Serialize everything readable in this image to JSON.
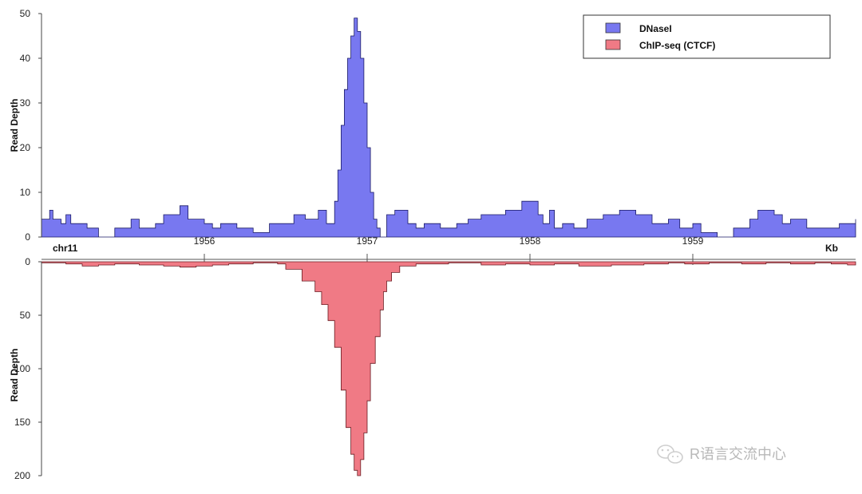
{
  "chart_data": [
    {
      "type": "area",
      "ylabel": "Read Depth",
      "xlabel": "Kb",
      "ylim": [
        0,
        50
      ],
      "xlim": [
        1955.0,
        1960.0
      ],
      "yticks": [
        "0",
        "10",
        "20",
        "30",
        "40",
        "50"
      ],
      "xticks": [
        "1956",
        "1957",
        "1958",
        "1959"
      ],
      "chromosome_label": "chr11",
      "series": [
        {
          "name": "DNaseI",
          "color": "#7878f0",
          "stroke": "#1a1a66",
          "x": [
            1955.0,
            1955.05,
            1955.07,
            1955.12,
            1955.15,
            1955.18,
            1955.22,
            1955.28,
            1955.35,
            1955.45,
            1955.55,
            1955.6,
            1955.7,
            1955.75,
            1955.85,
            1955.9,
            1956.0,
            1956.05,
            1956.1,
            1956.2,
            1956.3,
            1956.4,
            1956.55,
            1956.62,
            1956.7,
            1956.75,
            1956.8,
            1956.82,
            1956.84,
            1956.86,
            1956.88,
            1956.9,
            1956.92,
            1956.94,
            1956.96,
            1956.98,
            1957.0,
            1957.02,
            1957.04,
            1957.06,
            1957.08,
            1957.12,
            1957.17,
            1957.25,
            1957.3,
            1957.35,
            1957.45,
            1957.55,
            1957.62,
            1957.7,
            1957.85,
            1957.95,
            1958.05,
            1958.08,
            1958.12,
            1958.15,
            1958.2,
            1958.27,
            1958.35,
            1958.45,
            1958.55,
            1958.65,
            1958.75,
            1958.85,
            1958.92,
            1959.0,
            1959.05,
            1959.15,
            1959.25,
            1959.35,
            1959.4,
            1959.5,
            1959.55,
            1959.6,
            1959.7,
            1959.8,
            1959.9,
            1960.0
          ],
          "y": [
            4,
            6,
            4,
            3,
            5,
            3,
            3,
            2,
            0,
            2,
            4,
            2,
            3,
            5,
            7,
            4,
            3,
            2,
            3,
            2,
            1,
            3,
            5,
            4,
            6,
            3,
            8,
            15,
            25,
            33,
            40,
            45,
            49,
            46,
            40,
            30,
            20,
            10,
            4,
            2,
            0,
            5,
            6,
            3,
            2,
            3,
            2,
            3,
            4,
            5,
            6,
            8,
            5,
            3,
            6,
            2,
            3,
            2,
            4,
            5,
            6,
            5,
            3,
            4,
            2,
            3,
            1,
            0,
            2,
            4,
            6,
            5,
            3,
            4,
            2,
            2,
            3,
            4
          ]
        }
      ]
    },
    {
      "type": "area",
      "ylabel": "Read Depth",
      "ylim": [
        0,
        200
      ],
      "inverted": true,
      "xlim": [
        1955.0,
        1960.0
      ],
      "yticks": [
        "0",
        "50",
        "100",
        "150",
        "200"
      ],
      "series": [
        {
          "name": "ChIP-seq (CTCF)",
          "color": "#f07a85",
          "stroke": "#6a1a20",
          "x": [
            1955.0,
            1955.15,
            1955.25,
            1955.35,
            1955.45,
            1955.6,
            1955.75,
            1955.85,
            1955.95,
            1956.05,
            1956.15,
            1956.3,
            1956.45,
            1956.5,
            1956.6,
            1956.68,
            1956.72,
            1956.76,
            1956.8,
            1956.84,
            1956.87,
            1956.9,
            1956.92,
            1956.94,
            1956.96,
            1956.98,
            1957.0,
            1957.02,
            1957.05,
            1957.08,
            1957.1,
            1957.12,
            1957.15,
            1957.2,
            1957.3,
            1957.5,
            1957.7,
            1957.85,
            1958.0,
            1958.15,
            1958.3,
            1958.5,
            1958.7,
            1958.85,
            1958.95,
            1959.1,
            1959.3,
            1959.45,
            1959.6,
            1959.75,
            1959.85,
            1959.95,
            1960.0
          ],
          "y": [
            1,
            2,
            4,
            3,
            2,
            3,
            4,
            5,
            4,
            3,
            2,
            1,
            2,
            7,
            18,
            28,
            40,
            55,
            80,
            120,
            155,
            180,
            195,
            200,
            185,
            160,
            130,
            95,
            70,
            45,
            28,
            18,
            10,
            4,
            2,
            1,
            3,
            2,
            3,
            2,
            4,
            3,
            2,
            1,
            2,
            1,
            2,
            1,
            2,
            1,
            2,
            3,
            1
          ]
        }
      ]
    }
  ],
  "legend": {
    "items": [
      {
        "label": "DNaseI",
        "color": "#7878f0"
      },
      {
        "label": "ChIP-seq (CTCF)",
        "color": "#f07a85"
      }
    ]
  },
  "watermark": {
    "text": "R语言交流中心",
    "icon": "wechat-logo-icon"
  }
}
